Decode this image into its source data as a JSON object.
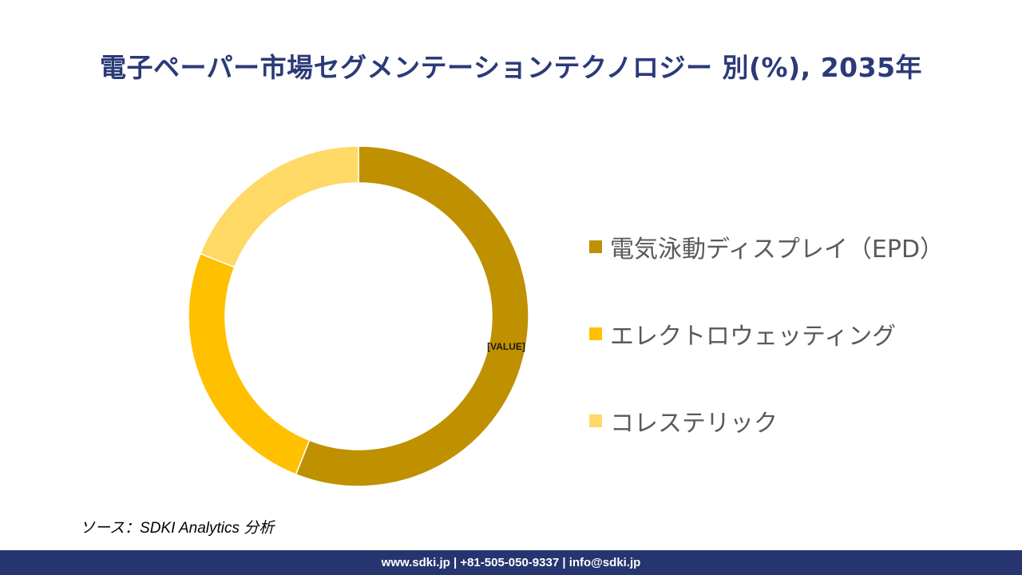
{
  "title": "電子ペーパー市場セグメンテーションテクノロジー 別(%), 2035年",
  "chart_data": {
    "type": "pie",
    "subtype": "donut",
    "title": "電子ペーパー市場セグメンテーションテクノロジー 別(%), 2035年",
    "categories": [
      "電気泳動ディスプレイ（EPD）",
      "エレクトロウェッティング",
      "コレステリック"
    ],
    "values": [
      56,
      25,
      19
    ],
    "colors": [
      "#BF9000",
      "#FFC000",
      "#FFD966"
    ],
    "data_labels": [
      "[VALUE]"
    ],
    "legend_position": "right"
  },
  "source": "ソース：SDKI Analytics 分析",
  "footer": "www.sdki.jp | +81-505-050-9337 | info@sdki.jp"
}
